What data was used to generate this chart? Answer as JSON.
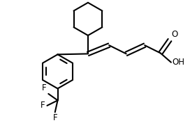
{
  "bg_color": "#ffffff",
  "line_color": "#000000",
  "line_width": 1.5,
  "text_color": "#000000",
  "font_size": 8.5,
  "fig_w": 2.72,
  "fig_h": 1.77,
  "dpi": 100,
  "xlim": [
    0,
    272
  ],
  "ylim": [
    0,
    177
  ]
}
